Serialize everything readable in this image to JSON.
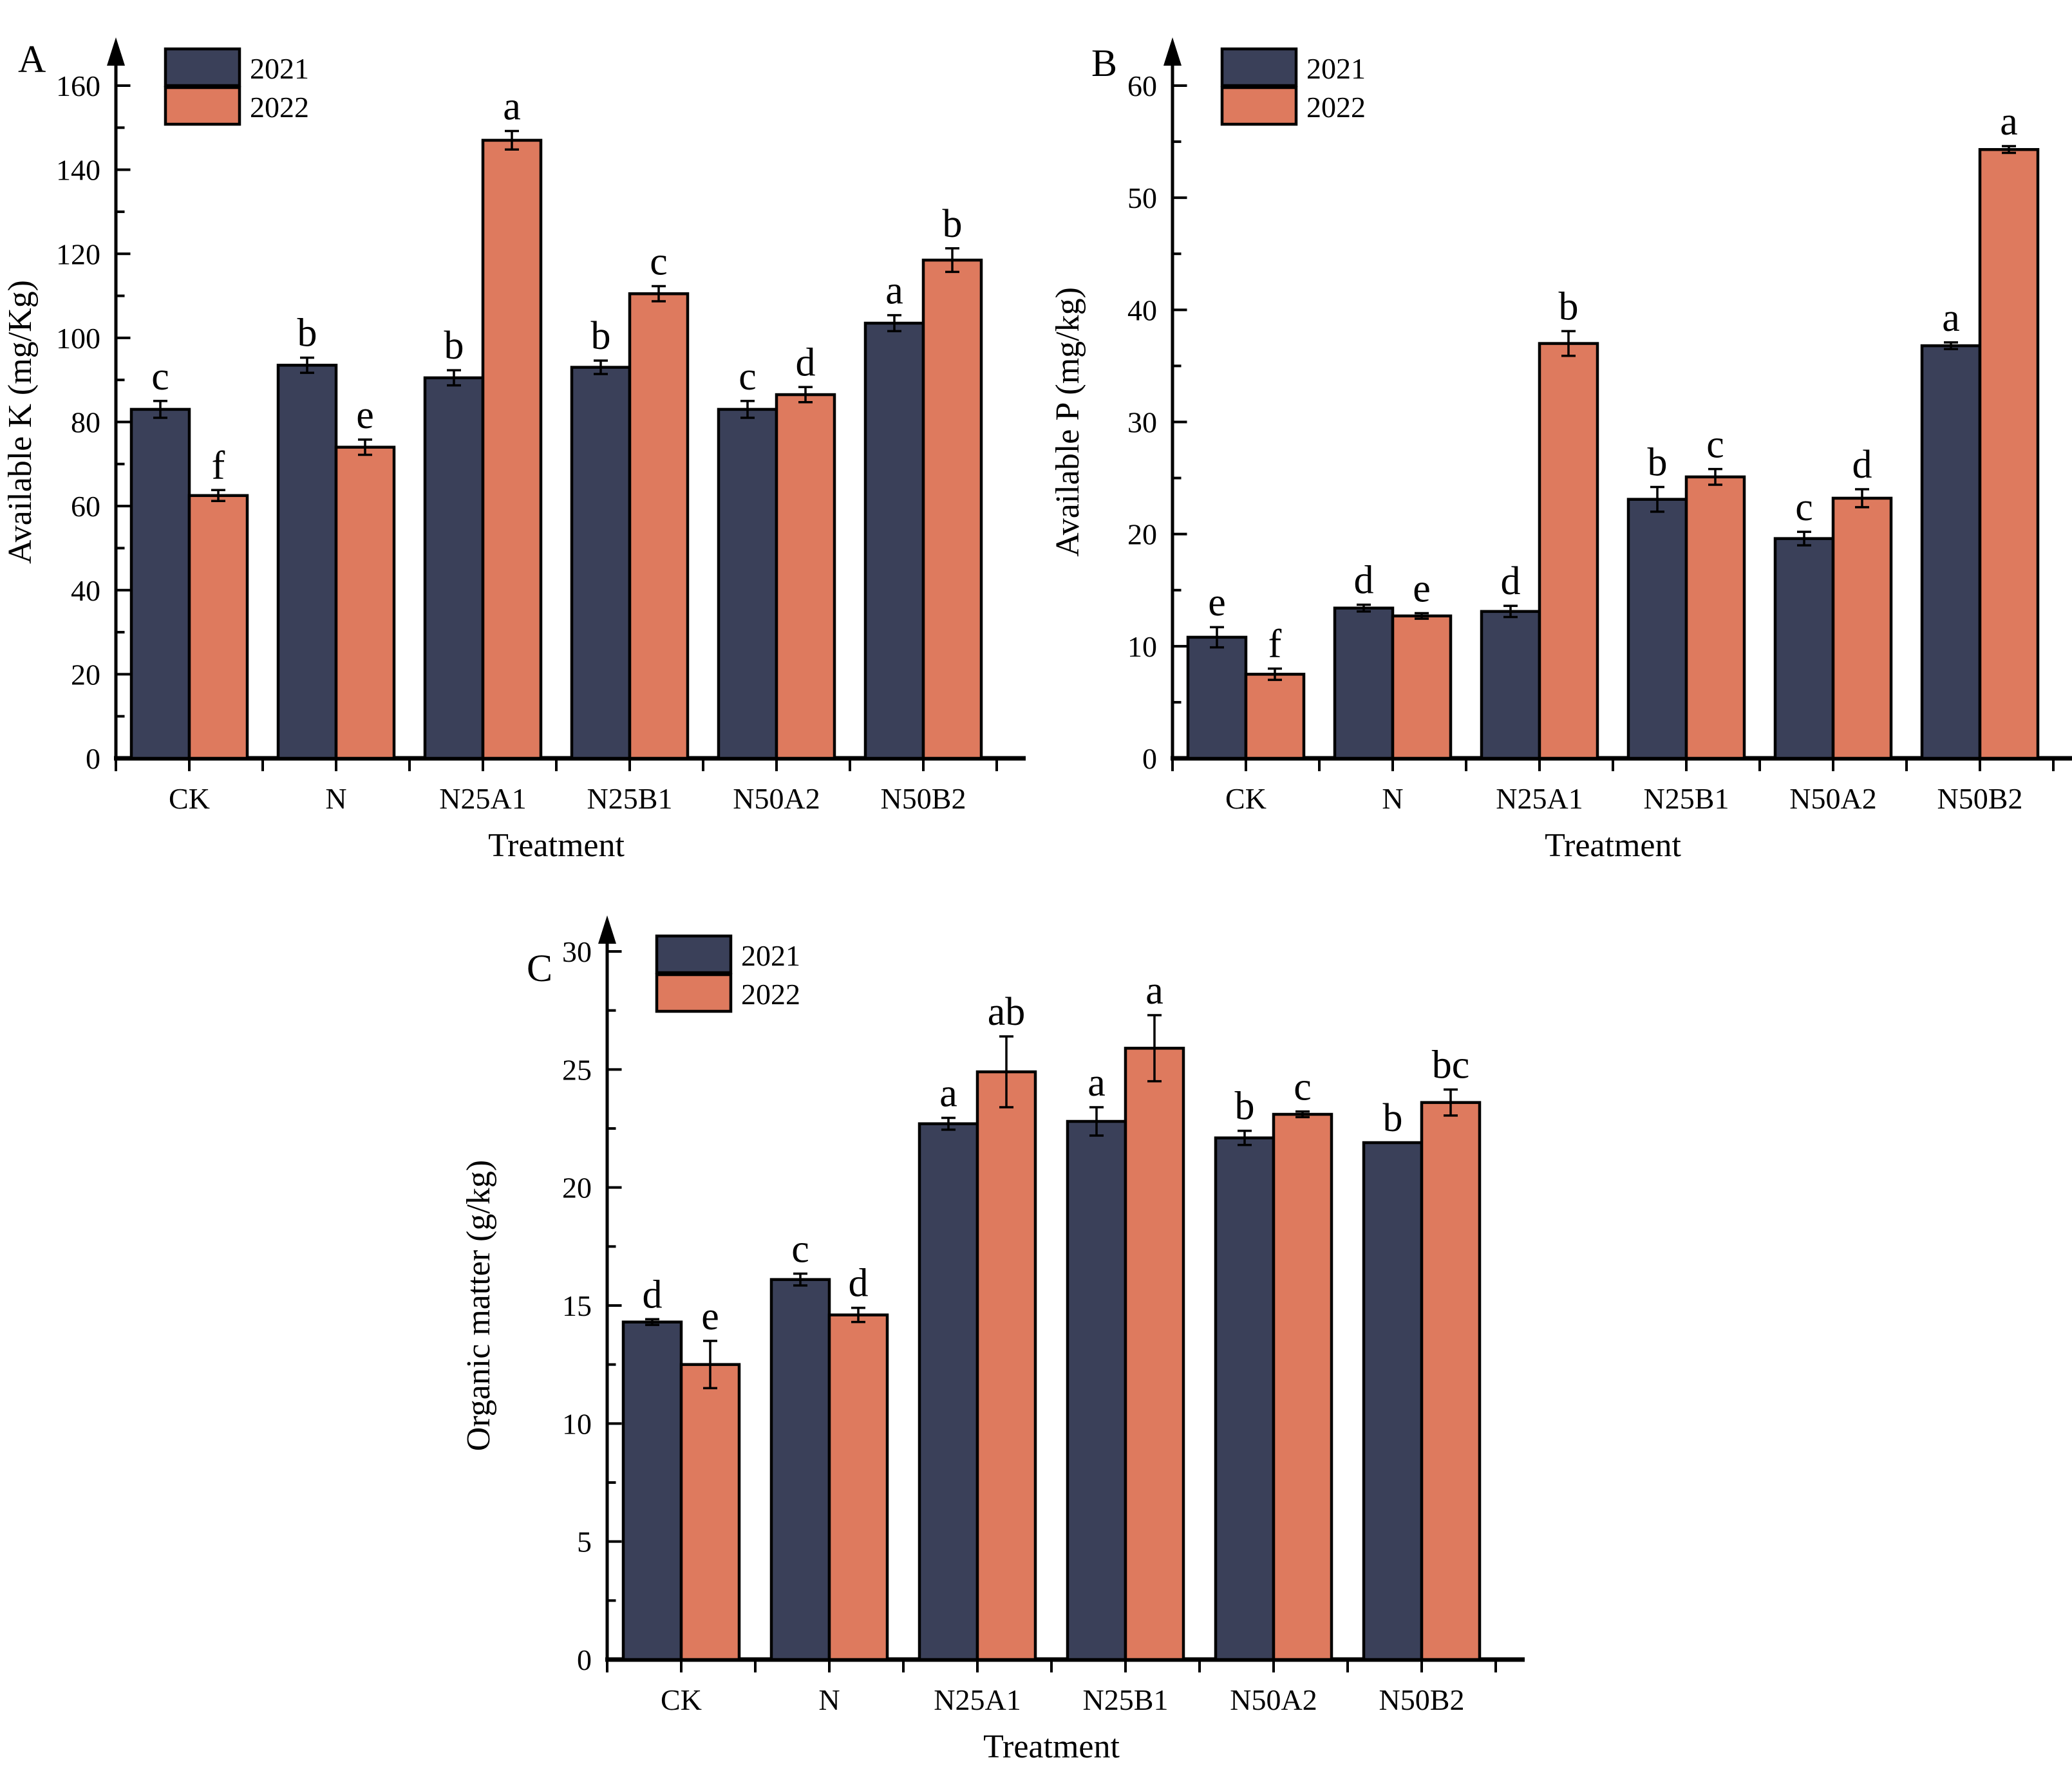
{
  "figure": {
    "background": "#ffffff",
    "panels": [
      "A",
      "B",
      "C"
    ],
    "legend_labels": [
      "2021",
      "2022"
    ],
    "series_colors": {
      "2021": "#3a4059",
      "2022": "#de7a5e"
    },
    "outline_color": "#000000"
  },
  "chart_data": [
    {
      "type": "bar",
      "panel_label": "A",
      "ylabel": "Available K (mg/Kg)",
      "xlabel": "Treatment",
      "ylim": [
        0,
        160
      ],
      "y_major_tick": 20,
      "y_minor_tick": 10,
      "grid": false,
      "legend_position": "top-left",
      "error_bars": true,
      "categories": [
        "CK",
        "N",
        "N25A1",
        "N25B1",
        "N50A2",
        "N50B2"
      ],
      "series": [
        {
          "name": "2021",
          "color": "#3a4059",
          "values": [
            83,
            93.5,
            90.5,
            93,
            83,
            103.5
          ],
          "errors": [
            2,
            1.8,
            1.8,
            1.6,
            2,
            1.9
          ],
          "letters": [
            "c",
            "b",
            "b",
            "b",
            "c",
            "a"
          ]
        },
        {
          "name": "2022",
          "color": "#de7a5e",
          "values": [
            62.5,
            74,
            147,
            110.5,
            86.5,
            118.5
          ],
          "errors": [
            1.3,
            1.8,
            2.2,
            1.8,
            1.8,
            2.8
          ],
          "letters": [
            "f",
            "e",
            "a",
            "c",
            "d",
            "b"
          ]
        }
      ]
    },
    {
      "type": "bar",
      "panel_label": "B",
      "ylabel": "Available P (mg/kg)",
      "xlabel": "Treatment",
      "ylim": [
        0,
        60
      ],
      "y_major_tick": 10,
      "y_minor_tick": 5,
      "grid": false,
      "legend_position": "top-left",
      "error_bars": true,
      "categories": [
        "CK",
        "N",
        "N25A1",
        "N25B1",
        "N50A2",
        "N50B2"
      ],
      "series": [
        {
          "name": "2021",
          "color": "#3a4059",
          "values": [
            10.8,
            13.4,
            13.1,
            23.1,
            19.6,
            36.8
          ],
          "errors": [
            0.9,
            0.3,
            0.5,
            1.1,
            0.6,
            0.3
          ],
          "letters": [
            "e",
            "d",
            "d",
            "b",
            "c",
            "a"
          ]
        },
        {
          "name": "2022",
          "color": "#de7a5e",
          "values": [
            7.5,
            12.7,
            37,
            25.1,
            23.2,
            54.3
          ],
          "errors": [
            0.5,
            0.25,
            1.1,
            0.7,
            0.8,
            0.3
          ],
          "letters": [
            "f",
            "e",
            "b",
            "c",
            "d",
            "a"
          ]
        }
      ]
    },
    {
      "type": "bar",
      "panel_label": "C",
      "ylabel": "Organic matter (g/kg)",
      "xlabel": "Treatment",
      "ylim": [
        0,
        30
      ],
      "y_major_tick": 5,
      "y_minor_tick": 2.5,
      "grid": false,
      "legend_position": "top-left",
      "error_bars": true,
      "categories": [
        "CK",
        "N",
        "N25A1",
        "N25B1",
        "N50A2",
        "N50B2"
      ],
      "series": [
        {
          "name": "2021",
          "color": "#3a4059",
          "values": [
            14.3,
            16.1,
            22.7,
            22.8,
            22.1,
            21.9
          ],
          "errors": [
            0.12,
            0.25,
            0.25,
            0.6,
            0.3,
            0
          ],
          "letters": [
            "d",
            "c",
            "a",
            "a",
            "b",
            "b"
          ]
        },
        {
          "name": "2022",
          "color": "#de7a5e",
          "values": [
            12.5,
            14.6,
            24.9,
            25.9,
            23.1,
            23.6
          ],
          "errors": [
            1.0,
            0.3,
            1.5,
            1.4,
            0.12,
            0.55
          ],
          "letters": [
            "e",
            "d",
            "ab",
            "a",
            "c",
            "bc"
          ]
        }
      ]
    }
  ]
}
